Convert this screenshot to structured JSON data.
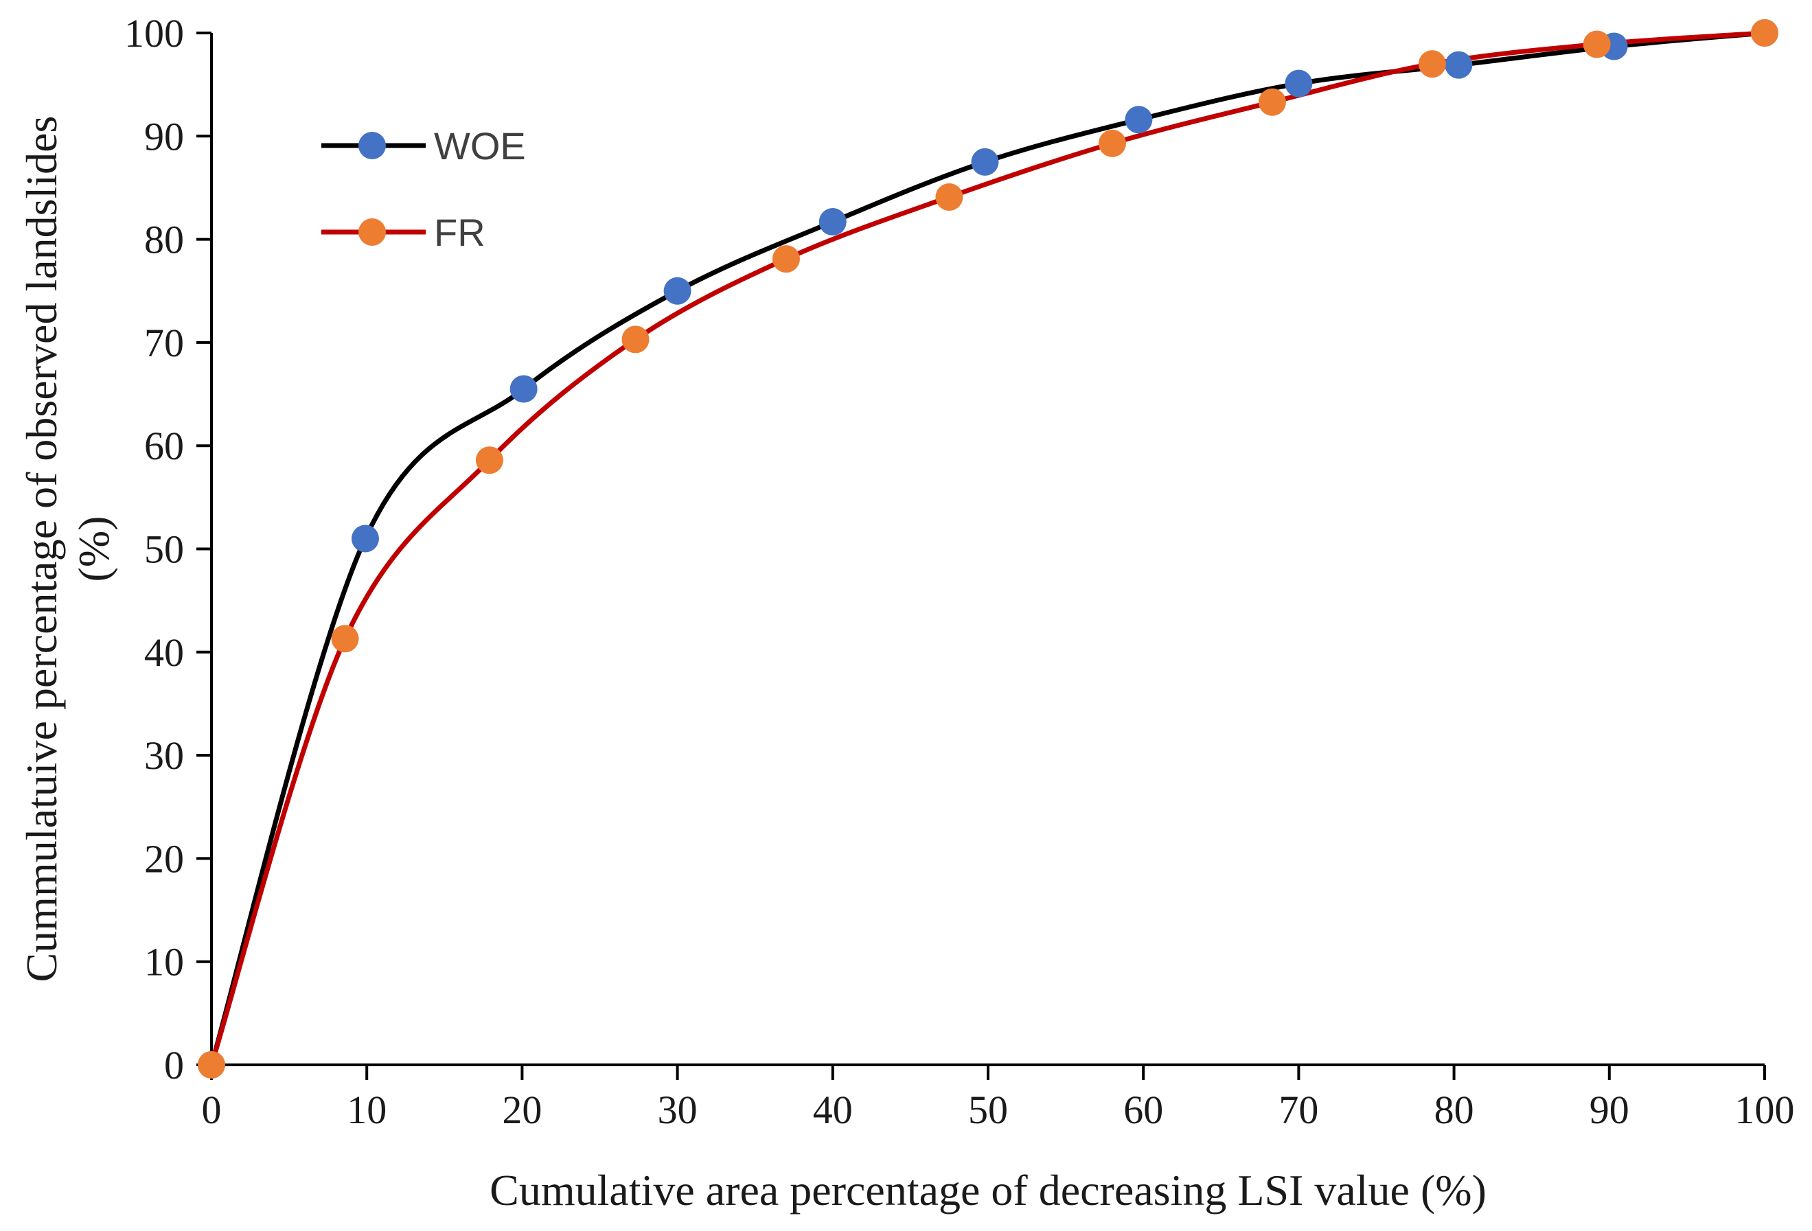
{
  "chart_data": {
    "type": "line",
    "title": "",
    "xlabel": "Cumulative area percentage of decreasing LSI value (%)",
    "ylabel": "Cummulatuive percentage of observed landslides (%)",
    "ylabel_lines": [
      "Cummulatuive percentage of observed landslides",
      "(%)"
    ],
    "xlim": [
      0,
      100
    ],
    "ylim": [
      0,
      100
    ],
    "xticks": [
      0,
      10,
      20,
      30,
      40,
      50,
      60,
      70,
      80,
      90,
      100
    ],
    "yticks": [
      0,
      10,
      20,
      30,
      40,
      50,
      60,
      70,
      80,
      90,
      100
    ],
    "grid": false,
    "legend_position": "top-left",
    "series": [
      {
        "name": "WOE",
        "line_color": "#000000",
        "marker_color": "#4472C4",
        "x": [
          0,
          9.9,
          20.1,
          30.0,
          40.0,
          49.8,
          59.7,
          70.0,
          80.3,
          90.3,
          100
        ],
        "y": [
          0,
          51.0,
          65.5,
          75.0,
          81.7,
          87.5,
          91.6,
          95.1,
          96.9,
          98.7,
          100
        ]
      },
      {
        "name": "FR",
        "line_color": "#C00000",
        "marker_color": "#ED7D31",
        "x": [
          0,
          8.6,
          17.9,
          27.3,
          37.0,
          47.5,
          58.0,
          68.3,
          78.6,
          89.2,
          100
        ],
        "y": [
          0,
          41.3,
          58.6,
          70.3,
          78.1,
          84.1,
          89.3,
          93.3,
          97.0,
          98.9,
          100
        ]
      }
    ]
  }
}
